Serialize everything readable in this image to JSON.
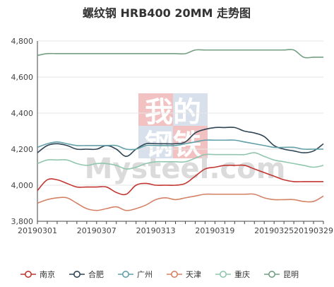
{
  "chart_data": {
    "type": "line",
    "title": "螺纹钢 HRB400 20MM 走势图",
    "x": [
      "20190301",
      "20190302",
      "20190303",
      "20190304",
      "20190305",
      "20190306",
      "20190307",
      "20190308",
      "20190309",
      "20190310",
      "20190311",
      "20190312",
      "20190313",
      "20190314",
      "20190315",
      "20190316",
      "20190317",
      "20190318",
      "20190319",
      "20190320",
      "20190321",
      "20190322",
      "20190323",
      "20190324",
      "20190325",
      "20190326",
      "20190327",
      "20190328",
      "20190329",
      "20190330"
    ],
    "x_tick_labels": [
      "20190301",
      "20190307",
      "20190313",
      "20190319",
      "20190325",
      "20190329"
    ],
    "y_tick_labels": [
      "3,800",
      "4,000",
      "4,200",
      "4,400",
      "4,600",
      "4,800"
    ],
    "ylim": [
      3800,
      4800
    ],
    "grid": "horizontal",
    "legend_position": "bottom",
    "series": [
      {
        "name": "南京",
        "color": "#c23531",
        "values": [
          3970,
          4030,
          4030,
          4010,
          3990,
          3990,
          3990,
          3990,
          3960,
          3950,
          4000,
          4010,
          4000,
          4000,
          4000,
          4010,
          4050,
          4090,
          4100,
          4110,
          4110,
          4110,
          4090,
          4070,
          4050,
          4030,
          4020,
          4020,
          4020,
          4020
        ]
      },
      {
        "name": "合肥",
        "color": "#2f4554",
        "values": [
          4180,
          4220,
          4230,
          4220,
          4200,
          4200,
          4200,
          4220,
          4200,
          4160,
          4200,
          4230,
          4230,
          4230,
          4230,
          4240,
          4290,
          4310,
          4320,
          4320,
          4320,
          4300,
          4290,
          4270,
          4220,
          4200,
          4190,
          4180,
          4190,
          4230
        ]
      },
      {
        "name": "广州",
        "color": "#61a0a8",
        "values": [
          4210,
          4230,
          4240,
          4230,
          4220,
          4220,
          4220,
          4220,
          4220,
          4200,
          4200,
          4220,
          4220,
          4220,
          4220,
          4230,
          4240,
          4250,
          4250,
          4250,
          4250,
          4240,
          4230,
          4220,
          4210,
          4210,
          4210,
          4200,
          4200,
          4200
        ]
      },
      {
        "name": "天津",
        "color": "#d48265",
        "values": [
          3900,
          3920,
          3930,
          3930,
          3900,
          3870,
          3860,
          3870,
          3880,
          3860,
          3870,
          3890,
          3920,
          3930,
          3920,
          3930,
          3940,
          3950,
          3950,
          3950,
          3950,
          3950,
          3950,
          3930,
          3920,
          3920,
          3920,
          3910,
          3910,
          3940
        ]
      },
      {
        "name": "重庆",
        "color": "#91c7ae",
        "values": [
          4120,
          4140,
          4140,
          4140,
          4120,
          4110,
          4120,
          4120,
          4110,
          4090,
          4100,
          4120,
          4130,
          4130,
          4130,
          4130,
          4150,
          4170,
          4170,
          4170,
          4170,
          4170,
          4180,
          4160,
          4140,
          4130,
          4120,
          4110,
          4100,
          4110
        ]
      },
      {
        "name": "昆明",
        "color": "#749f83",
        "values": [
          4720,
          4730,
          4730,
          4730,
          4730,
          4730,
          4730,
          4730,
          4730,
          4730,
          4730,
          4730,
          4730,
          4730,
          4730,
          4730,
          4750,
          4750,
          4750,
          4750,
          4750,
          4750,
          4750,
          4750,
          4750,
          4750,
          4750,
          4710,
          4710,
          4710
        ]
      }
    ]
  },
  "watermark": {
    "text_top": "我的",
    "text_bottom": "钢铁",
    "brand": "Mysteel.com"
  }
}
